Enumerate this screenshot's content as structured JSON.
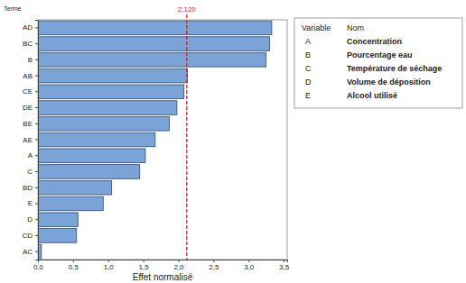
{
  "chart_data": {
    "type": "bar",
    "orientation": "horizontal",
    "xlabel": "Effet normalisé",
    "ylabel": "Terme",
    "categories": [
      "AD",
      "BC",
      "B",
      "AB",
      "CE",
      "DE",
      "BE",
      "AE",
      "A",
      "C",
      "BD",
      "E",
      "D",
      "CD",
      "AC"
    ],
    "values": [
      3.33,
      3.3,
      3.25,
      2.13,
      2.08,
      1.98,
      1.87,
      1.67,
      1.53,
      1.45,
      1.05,
      0.93,
      0.57,
      0.55,
      0.05
    ],
    "color": "#7ba3d8",
    "xlim": [
      0,
      3.55
    ],
    "xticks": [
      {
        "value": 0,
        "label": "0,0"
      },
      {
        "value": 0.5,
        "label": "0,5"
      },
      {
        "value": 1,
        "label": "1,0"
      },
      {
        "value": 1.5,
        "label": "1,5"
      },
      {
        "value": 2,
        "label": "2,0"
      },
      {
        "value": 2.5,
        "label": "2,5"
      },
      {
        "value": 3,
        "label": "3,0"
      },
      {
        "value": 3.5,
        "label": "3,5"
      }
    ],
    "annotations": [
      {
        "value": 2.12,
        "label": "2,120",
        "color": "#c0282d"
      }
    ],
    "variable_table": {
      "header": [
        "Variable",
        "Nom"
      ],
      "rows": [
        [
          "A",
          "Concentration"
        ],
        [
          "B",
          "Pourcentage eau"
        ],
        [
          "C",
          "Température de séchage"
        ],
        [
          "D",
          "Volume de déposition"
        ],
        [
          "E",
          "Alcool utilisé"
        ]
      ]
    }
  }
}
